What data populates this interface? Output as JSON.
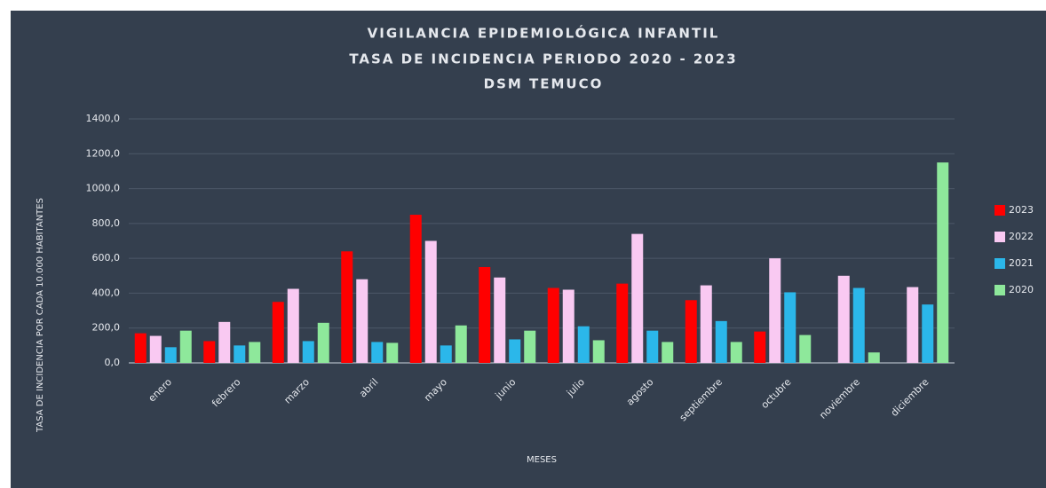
{
  "chart_data": {
    "type": "bar",
    "title": [
      "VIGILANCIA EPIDEMIOLÓGICA INFANTIL",
      "TASA DE INCIDENCIA PERIODO 2020 - 2023",
      "DSM TEMUCO"
    ],
    "x_label": "MESES",
    "y_label": "TASA DE INCIDENCIA POR CADA 10.000 HABITANTES",
    "categories": [
      "enero",
      "febrero",
      "marzo",
      "abril",
      "mayo",
      "junio",
      "julio",
      "agosto",
      "septiembre",
      "octubre",
      "noviembre",
      "diciembre"
    ],
    "series": [
      {
        "name": "2023",
        "color": "#ff0000",
        "values": [
          170,
          125,
          350,
          640,
          850,
          550,
          430,
          455,
          360,
          180,
          null,
          null
        ]
      },
      {
        "name": "2022",
        "color": "#f9c9f2",
        "values": [
          155,
          235,
          425,
          480,
          700,
          490,
          420,
          740,
          445,
          600,
          500,
          435
        ]
      },
      {
        "name": "2021",
        "color": "#2bb7ea",
        "values": [
          90,
          100,
          125,
          120,
          100,
          135,
          210,
          185,
          240,
          405,
          430,
          335
        ]
      },
      {
        "name": "2020",
        "color": "#8ee89b",
        "values": [
          185,
          120,
          230,
          115,
          215,
          185,
          130,
          120,
          120,
          160,
          60,
          1150
        ]
      }
    ],
    "ylim": [
      0,
      1400
    ],
    "yticks": [
      {
        "value": 0,
        "label": "0,0"
      },
      {
        "value": 200,
        "label": "200,0"
      },
      {
        "value": 400,
        "label": "400,0"
      },
      {
        "value": 600,
        "label": "600,0"
      },
      {
        "value": 800,
        "label": "800,0"
      },
      {
        "value": 1000,
        "label": "1000,0"
      },
      {
        "value": 1200,
        "label": "1200,0"
      },
      {
        "value": 1400,
        "label": "1400,0"
      }
    ],
    "grid": true,
    "legend": "right"
  }
}
